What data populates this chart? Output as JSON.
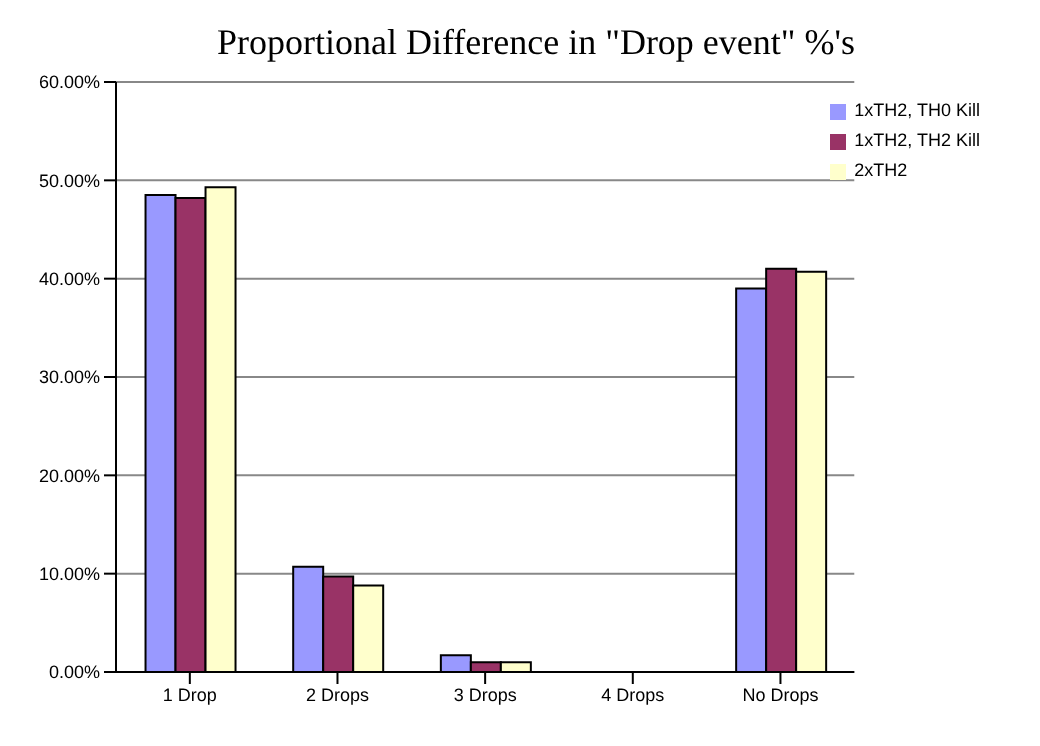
{
  "chart_data": {
    "type": "bar",
    "title": "Proportional Difference in \"Drop event\" %'s",
    "categories": [
      "1 Drop",
      "2 Drops",
      "3 Drops",
      "4 Drops",
      "No Drops"
    ],
    "series": [
      {
        "name": "1xTH2, TH0 Kill",
        "color": "#9999ff",
        "values": [
          48.5,
          10.7,
          1.7,
          0,
          39
        ]
      },
      {
        "name": "1xTH2, TH2 Kill",
        "color": "#993366",
        "values": [
          48.2,
          9.7,
          1,
          0,
          41
        ]
      },
      {
        "name": "2xTH2",
        "color": "#ffffcc",
        "values": [
          49.3,
          8.8,
          1,
          0,
          40.7
        ]
      }
    ],
    "ylim": [
      0,
      60
    ],
    "yticks": [
      {
        "value": 0,
        "label": "0.00%"
      },
      {
        "value": 10,
        "label": "10.00%"
      },
      {
        "value": 20,
        "label": "20.00%"
      },
      {
        "value": 30,
        "label": "30.00%"
      },
      {
        "value": 40,
        "label": "40.00%"
      },
      {
        "value": 50,
        "label": "50.00%"
      },
      {
        "value": 60,
        "label": "60.00%"
      }
    ],
    "grid": "y",
    "legend": "top right"
  }
}
